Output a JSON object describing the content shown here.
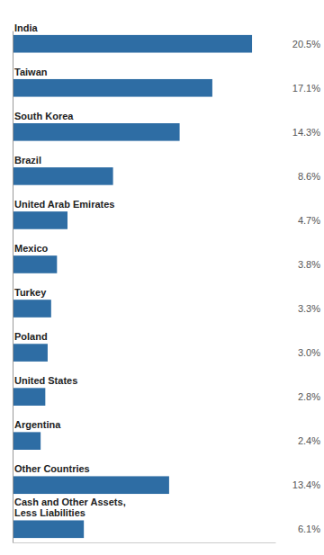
{
  "chart_data": {
    "type": "bar",
    "orientation": "horizontal",
    "categories": [
      "India",
      "Taiwan",
      "South Korea",
      "Brazil",
      "United Arab Emirates",
      "Mexico",
      "Turkey",
      "Poland",
      "United States",
      "Argentina",
      "Other Countries",
      "Cash and Other Assets,\nLess Liabilities"
    ],
    "values": [
      20.5,
      17.1,
      14.3,
      8.6,
      4.7,
      3.8,
      3.3,
      3.0,
      2.8,
      2.4,
      13.4,
      6.1
    ],
    "value_labels": [
      "20.5%",
      "17.1%",
      "14.3%",
      "8.6%",
      "4.7%",
      "3.8%",
      "3.3%",
      "3.0%",
      "2.8%",
      "2.4%",
      "13.4%",
      "6.1%"
    ],
    "data_labels": true,
    "color": "#2E6DA4",
    "xlim": [
      0,
      22.5
    ],
    "tick_labels": false
  }
}
